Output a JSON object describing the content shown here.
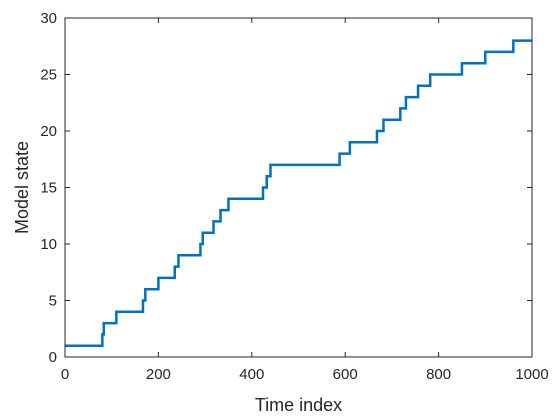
{
  "chart_data": {
    "type": "line",
    "xlabel": "Time index",
    "ylabel": "Model state",
    "xlim": [
      0,
      1000
    ],
    "ylim": [
      0,
      30
    ],
    "xticks": [
      0,
      200,
      400,
      600,
      800,
      1000
    ],
    "yticks": [
      0,
      5,
      10,
      15,
      20,
      25,
      30
    ],
    "grid": false,
    "line_color": "#0072BD",
    "series": [
      {
        "step": true,
        "x": [
          0,
          80,
          83,
          110,
          167,
          172,
          200,
          235,
          243,
          290,
          295,
          318,
          333,
          350,
          424,
          432,
          440,
          588,
          610,
          668,
          682,
          718,
          730,
          756,
          782,
          850,
          900,
          960,
          1000
        ],
        "values": [
          1,
          2,
          3,
          4,
          5,
          6,
          7,
          8,
          9,
          10,
          11,
          12,
          13,
          14,
          15,
          16,
          17,
          18,
          19,
          20,
          21,
          22,
          23,
          24,
          25,
          26,
          27,
          28,
          28
        ]
      }
    ]
  }
}
